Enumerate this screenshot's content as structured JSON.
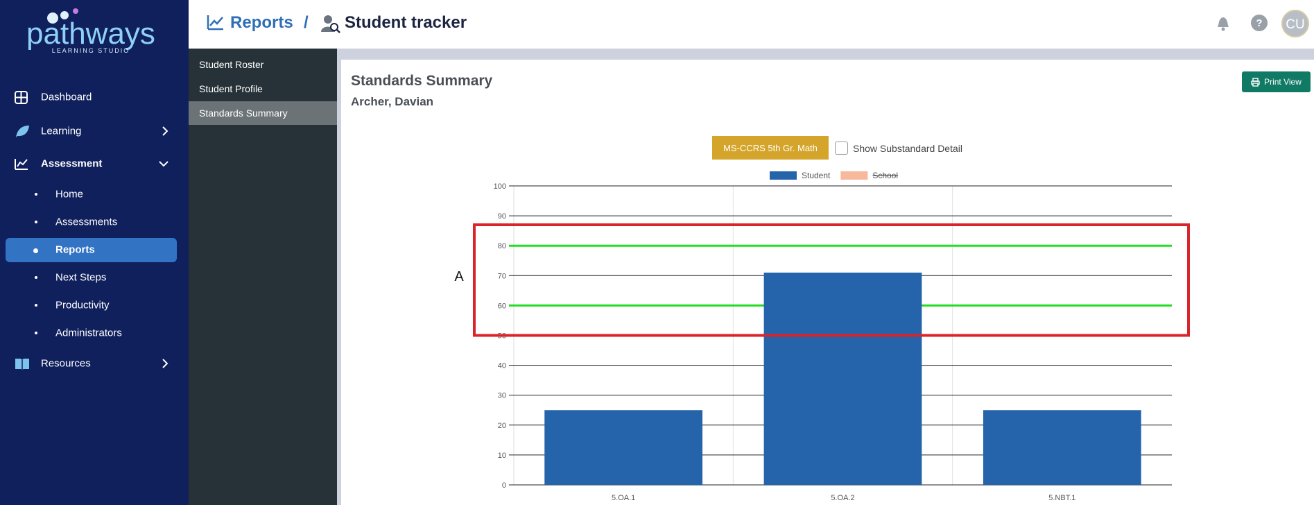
{
  "sidebar": {
    "logo": "pathways",
    "logo_sub": "LEARNING STUDIO",
    "nav": [
      "Dashboard",
      "Learning",
      "Assessment",
      "Resources"
    ],
    "assessment_items": [
      "Home",
      "Assessments",
      "Reports",
      "Next Steps",
      "Productivity",
      "Administrators"
    ]
  },
  "header": {
    "section": "Reports",
    "separator": "/",
    "page": "Student tracker",
    "help": "?",
    "avatar": "CU"
  },
  "subnav": [
    "Student Roster",
    "Student Profile",
    "Standards Summary"
  ],
  "panel": {
    "title": "Standards Summary",
    "student": "Archer, Davian",
    "print_button": "Print View",
    "standard_button": "MS-CCRS 5th Gr. Math",
    "checkbox_label": "Show Substandard Detail"
  },
  "chart_data": {
    "type": "bar",
    "categories": [
      "5.OA.1",
      "5.OA.2",
      "5.NBT.1"
    ],
    "series": [
      {
        "name": "Student",
        "color": "#2563ab",
        "values": [
          25,
          71,
          25
        ]
      },
      {
        "name": "School",
        "color": "#f7b89b",
        "hidden": true,
        "values": [
          null,
          null,
          null
        ]
      }
    ],
    "ylim": [
      0,
      100
    ],
    "yticks": [
      0,
      10,
      20,
      30,
      40,
      50,
      60,
      70,
      80,
      90,
      100
    ],
    "grid": true,
    "reference_lines": {
      "color": "#22dd22",
      "values": [
        80,
        60
      ]
    },
    "highlight": {
      "label": "A",
      "range": [
        50,
        87
      ],
      "color": "#d9252a"
    }
  }
}
